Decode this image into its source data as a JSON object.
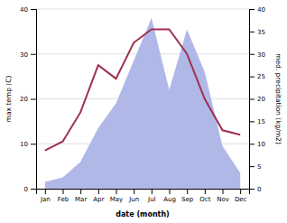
{
  "chart_data": {
    "type": "line",
    "xlabel": "date (month)",
    "ylabel": "max temp (C)",
    "y2label": "med. precipitation (kg/m2)",
    "categories": [
      "Jan",
      "Feb",
      "Mar",
      "Apr",
      "May",
      "Jun",
      "Jul",
      "Aug",
      "Sep",
      "Oct",
      "Nov",
      "Dec"
    ],
    "series": [
      {
        "type": "area",
        "axis": "y2",
        "color": "#b0b8e8",
        "values": [
          1.5,
          2.5,
          6.0,
          13.5,
          19.0,
          28.5,
          38.0,
          22.0,
          35.5,
          26.0,
          9.5,
          3.5
        ]
      },
      {
        "type": "line",
        "color": "#a03050",
        "values": [
          8.5,
          10.5,
          17.0,
          27.5,
          24.5,
          32.5,
          35.5,
          35.5,
          30.0,
          20.0,
          13.0,
          12.0
        ]
      }
    ],
    "ylim": [
      0,
      40
    ],
    "yticks": [
      0,
      10,
      20,
      30,
      40
    ],
    "y2lim": [
      0,
      40
    ],
    "y2ticks": [
      0,
      5,
      10,
      15,
      20,
      25,
      30,
      35,
      40
    ],
    "grid": true
  }
}
